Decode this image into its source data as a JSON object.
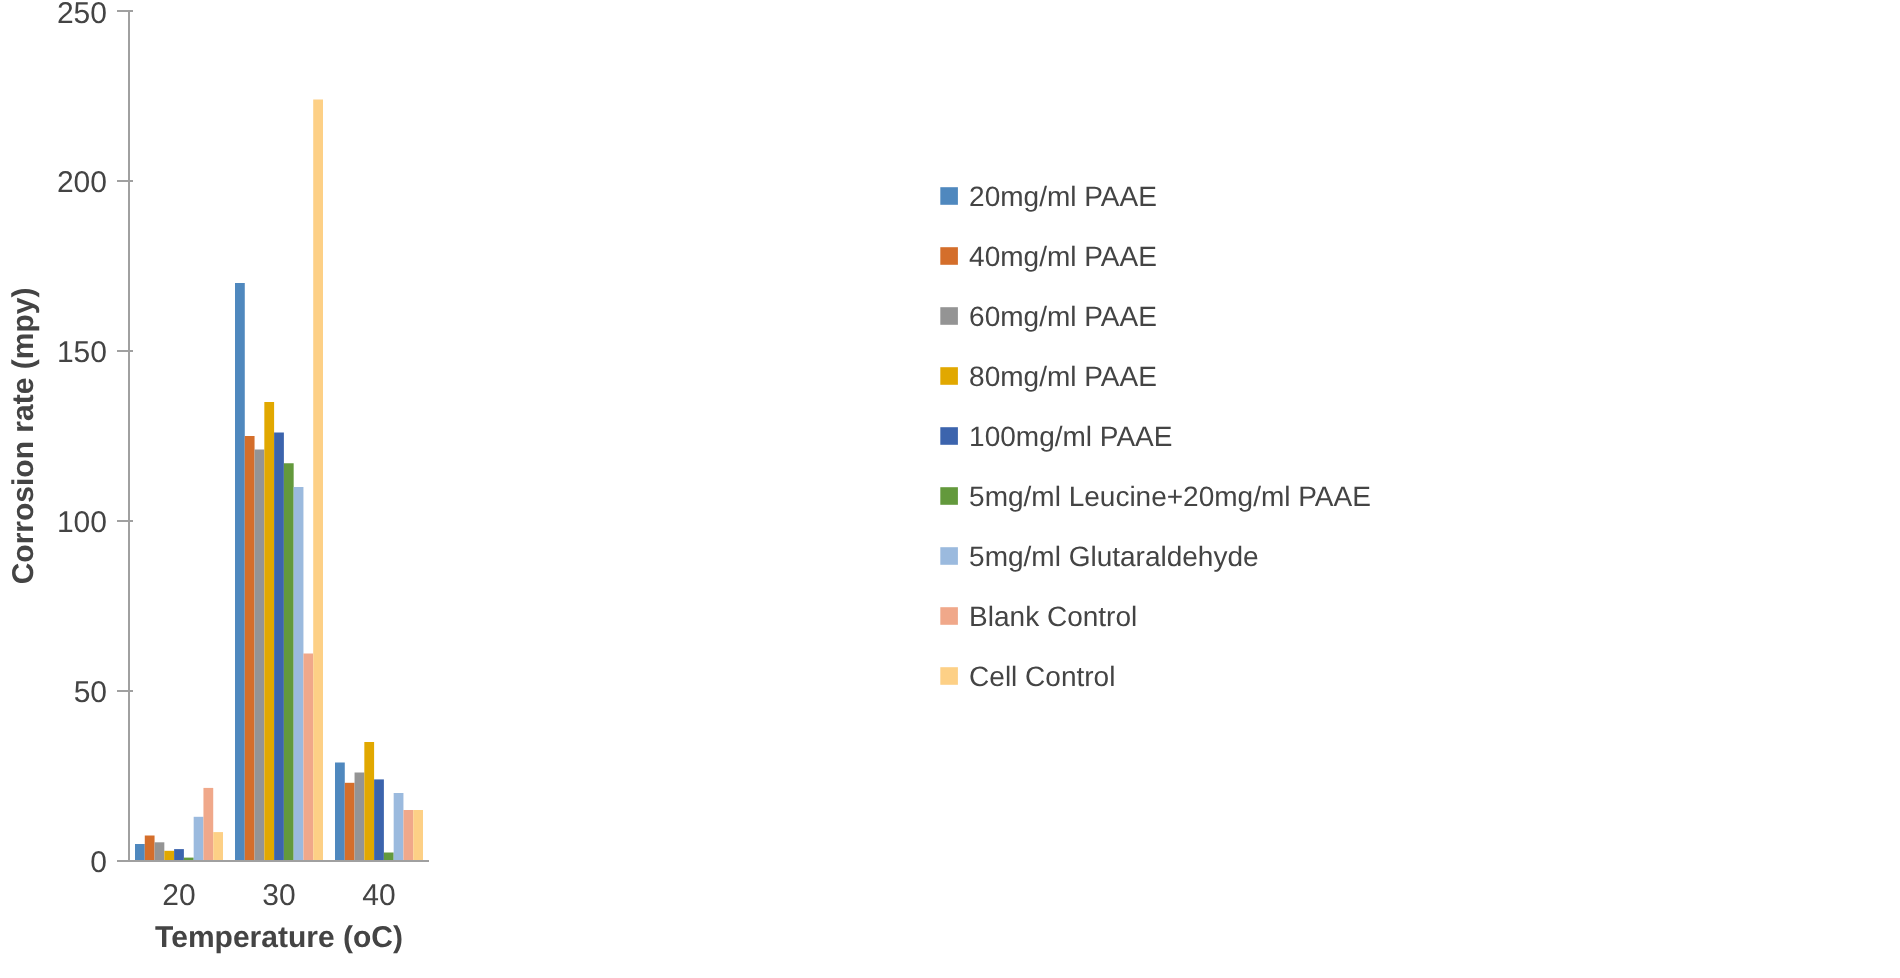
{
  "chart_data": {
    "type": "bar",
    "xlabel": "Temperature (oC)",
    "ylabel": "Corrosion rate (mpy)",
    "categories": [
      "20",
      "30",
      "40"
    ],
    "ylim": [
      0,
      250
    ],
    "yticks": [
      0,
      50,
      100,
      150,
      200,
      250
    ],
    "grid": false,
    "legend": "right",
    "series": [
      {
        "name": "20mg/ml PAAE",
        "color": "#4f88be",
        "values": [
          5,
          170,
          29
        ]
      },
      {
        "name": "40mg/ml PAAE",
        "color": "#d46e2b",
        "values": [
          7.5,
          125,
          23
        ]
      },
      {
        "name": "60mg/ml PAAE",
        "color": "#949494",
        "values": [
          5.5,
          121,
          26
        ]
      },
      {
        "name": "80mg/ml PAAE",
        "color": "#e1a800",
        "values": [
          3,
          135,
          35
        ]
      },
      {
        "name": "100mg/ml PAAE",
        "color": "#3c64ad",
        "values": [
          3.5,
          126,
          24
        ]
      },
      {
        "name": "5mg/ml Leucine+20mg/ml PAAE",
        "color": "#63993c",
        "values": [
          1,
          117,
          2.5
        ]
      },
      {
        "name": "5mg/ml Glutaraldehyde",
        "color": "#9bbade",
        "values": [
          13,
          110,
          20
        ]
      },
      {
        "name": "Blank Control",
        "color": "#f0a88a",
        "values": [
          21.5,
          61,
          15
        ]
      },
      {
        "name": "Cell Control",
        "color": "#fdd086",
        "values": [
          8.5,
          224,
          15
        ]
      }
    ]
  }
}
